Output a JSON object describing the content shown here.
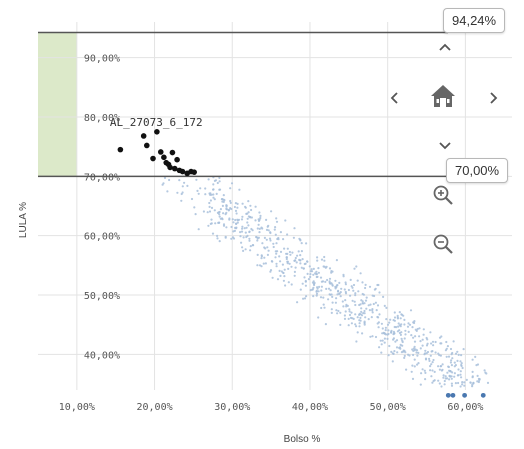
{
  "chart_data": {
    "type": "scatter",
    "xlabel": "Bolso %",
    "ylabel": "LULA %",
    "xlim": [
      5,
      66
    ],
    "ylim": [
      34,
      96
    ],
    "x_ticks": [
      10,
      20,
      30,
      40,
      50,
      60
    ],
    "x_tick_labels": [
      "10,00%",
      "20,00%",
      "30,00%",
      "40,00%",
      "50,00%",
      "60,00%"
    ],
    "y_ticks": [
      40,
      50,
      60,
      70,
      80,
      90
    ],
    "y_tick_labels": [
      "40,00%",
      "50,00%",
      "60,00%",
      "70,00%",
      "80,00%",
      "90,00%"
    ],
    "grid": true,
    "reference_lines": [
      {
        "value": 94.24,
        "label": "94,24%"
      },
      {
        "value": 70.0,
        "label": "70,00%"
      }
    ],
    "highlight_band": {
      "x": [
        5,
        10
      ],
      "y": [
        70,
        94.24
      ],
      "color": "#dce9c9"
    },
    "annotation": {
      "text": "AL_27073_6_172",
      "x": 18.5,
      "y": 76.8
    },
    "selected_points": [
      [
        15.6,
        74.5
      ],
      [
        18.6,
        76.8
      ],
      [
        19.0,
        75.2
      ],
      [
        19.8,
        73.0
      ],
      [
        20.3,
        77.5
      ],
      [
        20.8,
        74.1
      ],
      [
        21.2,
        73.2
      ],
      [
        21.5,
        72.3
      ],
      [
        21.8,
        72.0
      ],
      [
        22.0,
        71.5
      ],
      [
        22.3,
        74.0
      ],
      [
        22.6,
        71.3
      ],
      [
        22.9,
        72.8
      ],
      [
        23.2,
        71.0
      ],
      [
        23.6,
        70.8
      ],
      [
        24.2,
        70.5
      ],
      [
        24.7,
        70.8
      ],
      [
        25.1,
        70.7
      ]
    ],
    "outlier_points": [
      [
        57.8,
        33.1
      ],
      [
        58.4,
        33.1
      ],
      [
        59.9,
        33.1
      ],
      [
        62.3,
        33.1
      ]
    ],
    "bulk_cloud": {
      "x_range": [
        21,
        65
      ],
      "trend": {
        "intercept": 91.0,
        "slope": -0.93
      },
      "spread": 2.6,
      "count": 900,
      "color": "#a8bfda"
    },
    "colors": {
      "selected": "#111111",
      "bulk": "#a8bfda",
      "outlier": "#4a78b0",
      "reference_line": "#555555",
      "grid": "#e3e3e3"
    }
  },
  "controls": {
    "icons": [
      "chevron-up-icon",
      "chevron-left-icon",
      "home-icon",
      "chevron-right-icon",
      "chevron-down-icon",
      "zoom-in-icon",
      "zoom-out-icon"
    ]
  }
}
